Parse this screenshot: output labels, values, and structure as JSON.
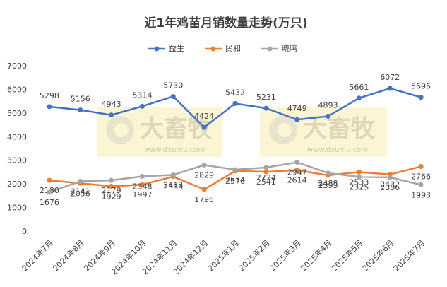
{
  "chart_data": {
    "type": "line",
    "title": "近1年鸡苗月销数量走势(万只)",
    "categories": [
      "2024年7月",
      "2024年8月",
      "2024年9月",
      "2024年10月",
      "2024年11月",
      "2024年12月",
      "2025年1月",
      "2025年2月",
      "2025年3月",
      "2025年4月",
      "2025年5月",
      "2025年6月",
      "2025年7月"
    ],
    "series": [
      {
        "name": "益生",
        "color": "#4472c4",
        "values": [
          5298,
          5156,
          4943,
          5314,
          5730,
          4424,
          5432,
          5231,
          4749,
          4893,
          5661,
          6072,
          5696
        ]
      },
      {
        "name": "民和",
        "color": "#ed7d31",
        "values": [
          2180,
          2056,
          1929,
          1997,
          2339,
          1795,
          2576,
          2541,
          2614,
          2393,
          2533,
          2432,
          2766
        ]
      },
      {
        "name": "晓鸣",
        "color": "#a5a5a5",
        "values": [
          1676,
          2141,
          2179,
          2348,
          2412,
          2829,
          2634,
          2724,
          2947,
          2488,
          2325,
          2306,
          1993
        ]
      }
    ],
    "ylim": [
      0,
      7000
    ],
    "yticks": [
      0,
      1000,
      2000,
      3000,
      4000,
      5000,
      6000,
      7000
    ],
    "grid": false,
    "legend": "top",
    "annotations": [
      "大畜牧",
      "www.dxumu.com"
    ]
  }
}
